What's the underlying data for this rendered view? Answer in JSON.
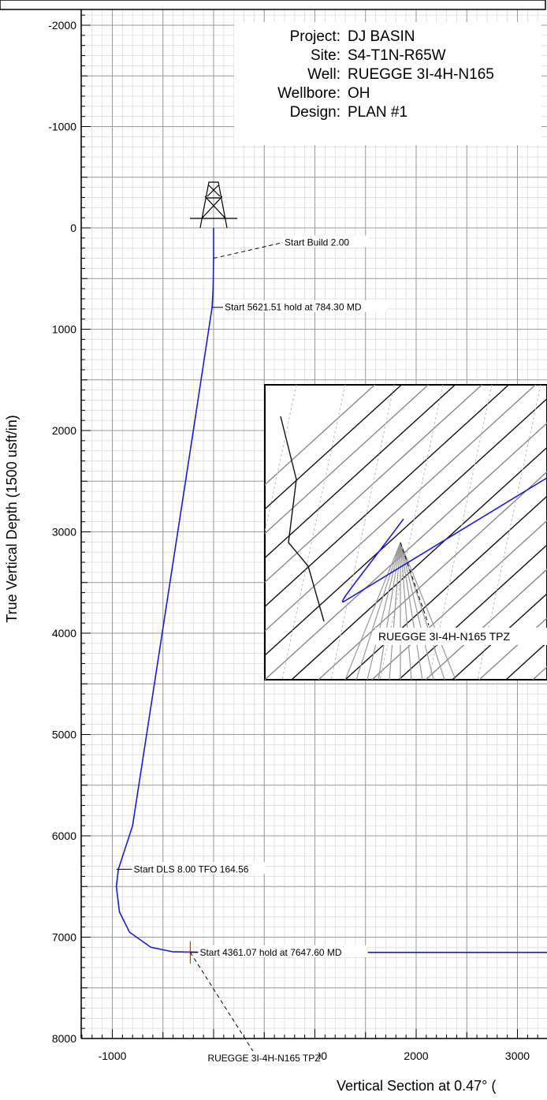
{
  "chart_data": {
    "type": "line",
    "xlabel": "Vertical Section at 0.47° (",
    "ylabel": "True Vertical Depth (1500 usft/in)",
    "xlim": [
      -1300,
      3350
    ],
    "ylim": [
      8000,
      -2200
    ],
    "y_inverted": true,
    "x_ticks": [
      -1000,
      0,
      1000,
      2000,
      3000
    ],
    "y_ticks": [
      -2000,
      -1000,
      0,
      1000,
      2000,
      3000,
      4000,
      5000,
      6000,
      7000,
      8000
    ],
    "grid": true,
    "colors": {
      "wellpath": "#1a1adc",
      "target": "#e0202a",
      "grid_major": "#9a9a9a",
      "grid_minor": "#dcdcdc"
    },
    "series": [
      {
        "points": [
          [
            0,
            0
          ],
          [
            0,
            300
          ],
          [
            -5,
            600
          ],
          [
            -15,
            784
          ],
          [
            -200,
            2000
          ],
          [
            -400,
            3300
          ],
          [
            -600,
            4600
          ],
          [
            -800,
            5900
          ],
          [
            -940,
            6330
          ],
          [
            -960,
            6500
          ],
          [
            -930,
            6750
          ],
          [
            -830,
            6950
          ],
          [
            -620,
            7100
          ],
          [
            -400,
            7145
          ],
          [
            0,
            7150
          ],
          [
            2000,
            7150
          ],
          [
            3350,
            7150
          ]
        ]
      }
    ],
    "annotations": [
      {
        "text": "Start Build 2.00",
        "x": 0,
        "y": 300
      },
      {
        "text": "Start 5621.51 hold at 784.30 MD",
        "x": -15,
        "y": 784
      },
      {
        "text": "Start DLS 8.00 TFO 164.56",
        "x": -960,
        "y": 6330
      },
      {
        "text": "Start 4361.07 hold at 7647.60 MD",
        "x": -230,
        "y": 7150
      },
      {
        "text": "RUEGGE 3I-4H-N165 TPZ",
        "x": -230,
        "y": 7150
      }
    ],
    "inset_label": "RUEGGE 3I-4H-N165 TPZ",
    "info_box": [
      {
        "key": "Project:",
        "value": "DJ BASIN"
      },
      {
        "key": "Site:",
        "value": "S4-T1N-R65W"
      },
      {
        "key": "Well:",
        "value": "RUEGGE 3I-4H-N165"
      },
      {
        "key": "Wellbore:",
        "value": "OH"
      },
      {
        "key": "Design:",
        "value": "PLAN #1"
      }
    ]
  }
}
